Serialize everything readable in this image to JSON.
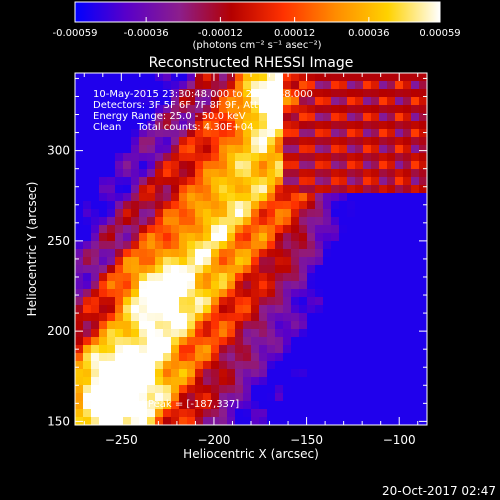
{
  "chart_data": {
    "type": "heatmap",
    "title": "Reconstructed RHESSI Image",
    "xlabel": "Heliocentric X (arcsec)",
    "ylabel": "Heliocentric Y (arcsec)",
    "xlim": [
      -275,
      -85
    ],
    "ylim": [
      148,
      343
    ],
    "xticks": [
      -250,
      -200,
      -150,
      -100
    ],
    "yticks": [
      150,
      200,
      250,
      300
    ],
    "colorbar": {
      "ticks": [
        -0.00059,
        -0.00036,
        -0.00012,
        0.00012,
        0.00036,
        0.00059
      ],
      "tick_labels": [
        "-0.00059",
        "-0.00036",
        "-0.00012",
        "0.00012",
        "0.00036",
        "0.00059"
      ],
      "range": [
        -0.00059,
        0.00059
      ],
      "units_label": "(photons cm⁻² s⁻¹ asec⁻²)"
    },
    "info_lines": [
      "10-May-2015 23:30:48.000 to 23:40:48.000",
      "Detectors: 3F 5F 6F 7F 8F 9F, Att 1",
      "Energy Range: 25.0 - 50.0 keV",
      "Clean     Total counts: 4.30E+04"
    ],
    "peak_label": "Position of Peak = [-187,337]",
    "peak_position": [
      -187,
      337
    ],
    "colors": {
      "background": "#000000",
      "colormap": [
        "#0000ff",
        "#5a00c8",
        "#8c1e8c",
        "#b40000",
        "#ff3200",
        "#ff8c00",
        "#ffd200",
        "#ffffff"
      ]
    }
  },
  "footer": {
    "timestamp": "20-Oct-2017 02:47"
  }
}
